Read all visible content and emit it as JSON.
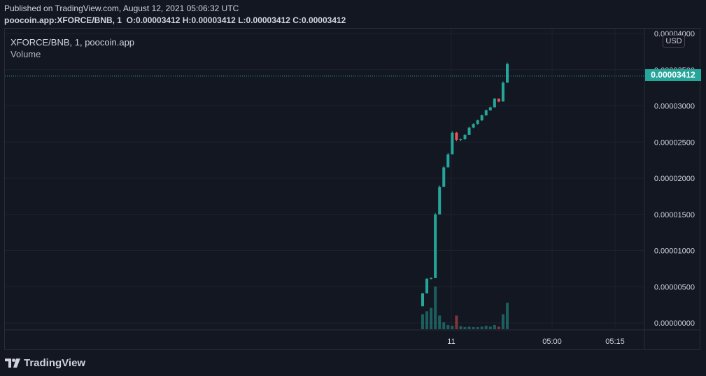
{
  "header": {
    "published": "Published on TradingView.com, August 12, 2021 05:06:32 UTC",
    "symbol": "poocoin.app:XFORCE/BNB, 1",
    "o_label": "O:",
    "o_value": "0.00003412",
    "h_label": "H:",
    "h_value": "0.00003412",
    "l_label": "L:",
    "l_value": "0.00003412",
    "c_label": "C:",
    "c_value": "0.00003412"
  },
  "legend": {
    "series": "XFORCE/BNB, 1, poocoin.app",
    "volume": "Volume"
  },
  "scale": {
    "currency": "USD"
  },
  "last_price": "0.00003412",
  "brand": "TradingView",
  "colors": {
    "background": "#131722",
    "up": "#26a69a",
    "down": "#ef5350",
    "grid": "#1e222d",
    "text": "#d1d4dc"
  },
  "chart_data": {
    "type": "candlestick",
    "y_ticks": [
      "0.00004000",
      "0.00003500",
      "0.00003000",
      "0.00002500",
      "0.00002000",
      "0.00001500",
      "0.00001000",
      "0.00000500",
      "0.00000000"
    ],
    "y_tick_values": [
      4e-05,
      3.5e-05,
      3e-05,
      2.5e-05,
      2e-05,
      1.5e-05,
      1e-05,
      5e-06,
      0.0
    ],
    "x_ticks": [
      "11",
      "05:00",
      "05:15"
    ],
    "ylim": [
      0,
      4e-05
    ],
    "last_price_value": 3.412e-05,
    "candles": [
      {
        "o": 2.3e-06,
        "h": 4.1e-06,
        "l": 2.3e-06,
        "c": 4.1e-06
      },
      {
        "o": 4.1e-06,
        "h": 6.2e-06,
        "l": 4.1e-06,
        "c": 6.1e-06
      },
      {
        "o": 6.1e-06,
        "h": 6.3e-06,
        "l": 6e-06,
        "c": 6.2e-06
      },
      {
        "o": 6.2e-06,
        "h": 1.52e-05,
        "l": 6.2e-06,
        "c": 1.5e-05
      },
      {
        "o": 1.5e-05,
        "h": 1.9e-05,
        "l": 1.5e-05,
        "c": 1.88e-05
      },
      {
        "o": 1.88e-05,
        "h": 2.17e-05,
        "l": 1.88e-05,
        "c": 2.15e-05
      },
      {
        "o": 2.15e-05,
        "h": 2.35e-05,
        "l": 2.15e-05,
        "c": 2.33e-05
      },
      {
        "o": 2.33e-05,
        "h": 2.65e-05,
        "l": 2.33e-05,
        "c": 2.63e-05
      },
      {
        "o": 2.63e-05,
        "h": 2.64e-05,
        "l": 2.51e-05,
        "c": 2.53e-05
      },
      {
        "o": 2.53e-05,
        "h": 2.55e-05,
        "l": 2.51e-05,
        "c": 2.54e-05
      },
      {
        "o": 2.54e-05,
        "h": 2.61e-05,
        "l": 2.53e-05,
        "c": 2.6e-05
      },
      {
        "o": 2.6e-05,
        "h": 2.71e-05,
        "l": 2.6e-05,
        "c": 2.7e-05
      },
      {
        "o": 2.7e-05,
        "h": 2.76e-05,
        "l": 2.69e-05,
        "c": 2.75e-05
      },
      {
        "o": 2.75e-05,
        "h": 2.81e-05,
        "l": 2.74e-05,
        "c": 2.8e-05
      },
      {
        "o": 2.8e-05,
        "h": 2.88e-05,
        "l": 2.79e-05,
        "c": 2.87e-05
      },
      {
        "o": 2.87e-05,
        "h": 2.95e-05,
        "l": 2.86e-05,
        "c": 2.94e-05
      },
      {
        "o": 2.94e-05,
        "h": 2.99e-05,
        "l": 2.93e-05,
        "c": 2.98e-05
      },
      {
        "o": 2.98e-05,
        "h": 3.11e-05,
        "l": 2.98e-05,
        "c": 3.1e-05
      },
      {
        "o": 3.1e-05,
        "h": 3.1e-05,
        "l": 3.05e-05,
        "c": 3.06e-05
      },
      {
        "o": 3.06e-05,
        "h": 3.34e-05,
        "l": 3.06e-05,
        "c": 3.32e-05
      },
      {
        "o": 3.32e-05,
        "h": 3.6e-05,
        "l": 3.32e-05,
        "c": 3.58e-05
      }
    ],
    "volumes_relative": [
      0.35,
      0.42,
      0.5,
      1.0,
      0.32,
      0.16,
      0.1,
      0.08,
      0.32,
      0.07,
      0.05,
      0.06,
      0.05,
      0.05,
      0.06,
      0.08,
      0.06,
      0.1,
      0.06,
      0.35,
      0.62
    ]
  }
}
